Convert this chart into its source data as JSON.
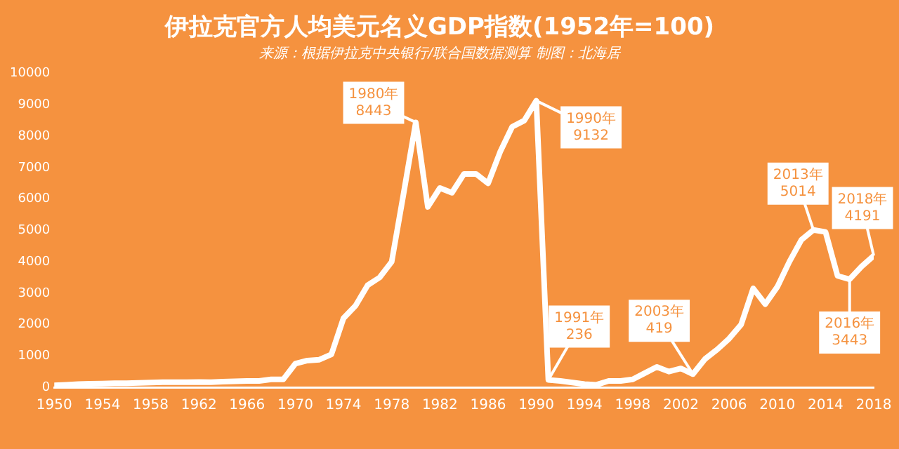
{
  "chart_data": {
    "type": "line",
    "title": "伊拉克官方人均美元名义GDP指数(1952年=100)",
    "subtitle": "来源：根据伊拉克中央银行/联合国数据测算 制图：北海居",
    "x": [
      1950,
      1951,
      1952,
      1953,
      1954,
      1955,
      1956,
      1957,
      1958,
      1959,
      1960,
      1961,
      1962,
      1963,
      1964,
      1965,
      1966,
      1967,
      1968,
      1969,
      1970,
      1971,
      1972,
      1973,
      1974,
      1975,
      1976,
      1977,
      1978,
      1979,
      1980,
      1981,
      1982,
      1983,
      1984,
      1985,
      1986,
      1987,
      1988,
      1989,
      1990,
      1991,
      1992,
      1993,
      1994,
      1995,
      1996,
      1997,
      1998,
      1999,
      2000,
      2001,
      2002,
      2003,
      2004,
      2005,
      2006,
      2007,
      2008,
      2009,
      2010,
      2011,
      2012,
      2013,
      2014,
      2015,
      2016,
      2017,
      2018
    ],
    "series": [
      {
        "color": "#ffffff",
        "values": [
          60,
          80,
          100,
          110,
          120,
          130,
          130,
          140,
          150,
          160,
          160,
          160,
          170,
          160,
          180,
          190,
          200,
          200,
          250,
          250,
          750,
          850,
          880,
          1050,
          2200,
          2600,
          3250,
          3500,
          4000,
          6200,
          8443,
          5750,
          6350,
          6200,
          6800,
          6800,
          6500,
          7500,
          8300,
          8500,
          9132,
          236,
          200,
          150,
          100,
          80,
          200,
          200,
          250,
          450,
          650,
          500,
          600,
          419,
          900,
          1200,
          1550,
          2000,
          3150,
          2650,
          3200,
          4000,
          4700,
          5014,
          4950,
          3550,
          3443,
          3850,
          4191
        ]
      }
    ],
    "xlim": [
      1950,
      2018
    ],
    "xticks": [
      1950,
      1954,
      1958,
      1962,
      1966,
      1970,
      1974,
      1978,
      1982,
      1986,
      1990,
      1994,
      1998,
      2002,
      2006,
      2010,
      2014,
      2018
    ],
    "ylim": [
      0,
      10000
    ],
    "yticks": [
      0,
      1000,
      2000,
      3000,
      4000,
      5000,
      6000,
      7000,
      8000,
      9000,
      10000
    ],
    "grid": false,
    "legend": false,
    "marker": "none",
    "line_style": "solid",
    "annotations": [
      {
        "text": "1980年\n8443",
        "x": 1980,
        "y": 8443
      },
      {
        "text": "1990年\n9132",
        "x": 1990,
        "y": 9132
      },
      {
        "text": "1991年\n236",
        "x": 1991,
        "y": 236
      },
      {
        "text": "2003年\n419",
        "x": 2003,
        "y": 419
      },
      {
        "text": "2013年\n5014",
        "x": 2013,
        "y": 5014
      },
      {
        "text": "2016年\n3443",
        "x": 2016,
        "y": 3443
      },
      {
        "text": "2018年\n4191",
        "x": 2018,
        "y": 4191
      }
    ]
  }
}
